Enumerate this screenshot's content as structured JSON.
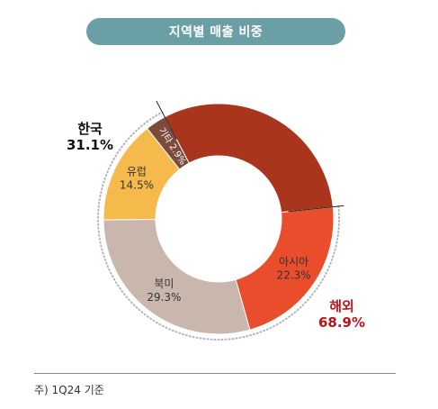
{
  "title": "지역별 매출 비중",
  "footnote": "주) 1Q24 기준",
  "chart_data": {
    "type": "pie",
    "variant": "donut",
    "title": "지역별 매출 비중",
    "slices": [
      {
        "label": "아시아",
        "value": 22.3,
        "display": "22.3%",
        "color": "#e94d2b",
        "text_color": "#333333"
      },
      {
        "label": "북미",
        "value": 29.3,
        "display": "29.3%",
        "color": "#c9b7ad",
        "text_color": "#333333"
      },
      {
        "label": "유럽",
        "value": 14.5,
        "display": "14.5%",
        "color": "#f6b94c",
        "text_color": "#333333"
      },
      {
        "label": "기타",
        "value": 2.9,
        "display": "2.9%",
        "color": "#7b4b3c",
        "text_color": "#ffffff"
      },
      {
        "label": "한국",
        "value": 31.1,
        "display": "31.1%",
        "color": "#a8351c",
        "text_color": "#111111"
      }
    ],
    "group_annotations": [
      {
        "label": "해외",
        "value": "68.9%",
        "color": "#c0121b"
      }
    ]
  }
}
